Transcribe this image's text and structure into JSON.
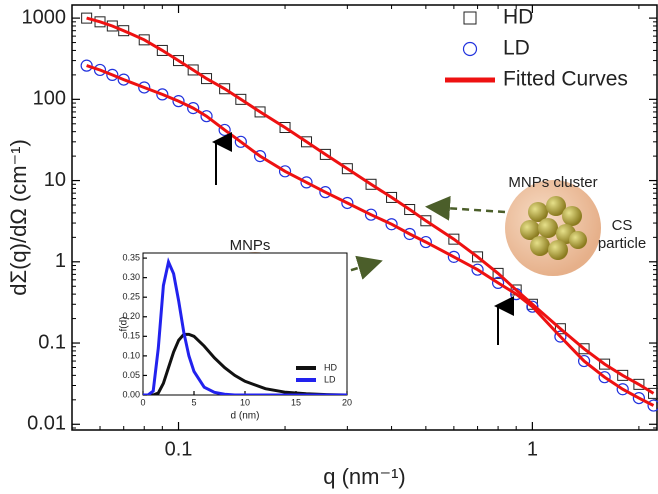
{
  "chart_data": [
    {
      "type": "scatter",
      "xlabel": "q (nm⁻¹)",
      "ylabel": "dΣ(q)/dΩ (cm⁻¹)",
      "xlog": true,
      "ylog": true,
      "xlim": [
        0.05,
        2.25
      ],
      "ylim": [
        0.0085,
        1450
      ],
      "xticks": [
        0.1,
        1
      ],
      "yticks": [
        0.01,
        0.1,
        1,
        10,
        100,
        1000
      ],
      "x": [
        0.055,
        0.06,
        0.065,
        0.07,
        0.08,
        0.09,
        0.1,
        0.11,
        0.12,
        0.135,
        0.15,
        0.17,
        0.2,
        0.23,
        0.26,
        0.3,
        0.35,
        0.4,
        0.45,
        0.5,
        0.6,
        0.7,
        0.8,
        0.9,
        1.0,
        1.2,
        1.4,
        1.6,
        1.8,
        2.0,
        2.2
      ],
      "series": [
        {
          "name": "HD",
          "marker": "square",
          "color": "#222222",
          "values": [
            1000,
            900,
            800,
            700,
            540,
            400,
            300,
            230,
            180,
            135,
            100,
            70,
            45,
            30,
            21,
            14,
            9,
            6.2,
            4.4,
            3.2,
            1.9,
            1.15,
            0.72,
            0.45,
            0.3,
            0.15,
            0.085,
            0.055,
            0.04,
            0.031,
            0.024
          ]
        },
        {
          "name": "LD",
          "marker": "circle",
          "color": "#2233dd",
          "values": [
            260,
            230,
            200,
            175,
            140,
            115,
            95,
            78,
            62,
            42,
            30,
            20,
            13,
            9.5,
            7.2,
            5.3,
            3.8,
            2.9,
            2.2,
            1.75,
            1.15,
            0.8,
            0.55,
            0.4,
            0.28,
            0.12,
            0.06,
            0.038,
            0.027,
            0.021,
            0.017
          ]
        },
        {
          "name": "Fitted Curves",
          "marker": "line",
          "color": "#ee1111",
          "values": [
            1000,
            900,
            800,
            700,
            540,
            400,
            300,
            230,
            180,
            135,
            100,
            70,
            45,
            30,
            21,
            14,
            9,
            6.2,
            4.4,
            3.2,
            1.9,
            1.15,
            0.72,
            0.45,
            0.3,
            0.15,
            0.085,
            0.055,
            0.04,
            0.031,
            0.024
          ]
        },
        {
          "marker": "line",
          "color": "#ee1111",
          "values": [
            260,
            230,
            200,
            175,
            140,
            115,
            95,
            78,
            62,
            42,
            30,
            20,
            13,
            9.5,
            7.2,
            5.3,
            3.8,
            2.9,
            2.2,
            1.75,
            1.15,
            0.8,
            0.55,
            0.4,
            0.28,
            0.12,
            0.06,
            0.038,
            0.027,
            0.021,
            0.017
          ]
        }
      ],
      "annotations": [
        "MNPs cluster",
        "CS",
        "particle",
        "MNPs",
        "CS",
        "particle"
      ]
    },
    {
      "type": "line",
      "xlabel": "d (nm)",
      "ylabel": "f(d)",
      "xlim": [
        0,
        20
      ],
      "ylim": [
        0,
        0.363
      ],
      "xticks": [
        0,
        5,
        10,
        15,
        20
      ],
      "yticks": [
        {
          "value": 0,
          "label": "0.00"
        },
        0.05,
        {
          "value": 0.1,
          "label": "0.10"
        },
        0.15,
        {
          "value": 0.2,
          "label": "0.20"
        },
        0.25,
        {
          "value": 0.3,
          "label": "0.30"
        },
        0.35
      ],
      "x": [
        0,
        0.5,
        1,
        1.5,
        2,
        2.5,
        3,
        3.5,
        4,
        4.5,
        5,
        6,
        7,
        8,
        9,
        10,
        12,
        14,
        16,
        18,
        20
      ],
      "series": [
        {
          "name": "HD",
          "color": "#111111",
          "values": [
            0,
            0,
            0,
            0.005,
            0.03,
            0.07,
            0.11,
            0.14,
            0.155,
            0.155,
            0.15,
            0.125,
            0.095,
            0.07,
            0.05,
            0.035,
            0.016,
            0.007,
            0.003,
            0.001,
            0
          ]
        },
        {
          "name": "LD",
          "color": "#2222ee",
          "values": [
            0,
            0,
            0.01,
            0.12,
            0.28,
            0.34,
            0.31,
            0.24,
            0.16,
            0.1,
            0.06,
            0.02,
            0.007,
            0.002,
            0,
            0,
            0,
            0,
            0,
            0,
            0
          ]
        }
      ]
    }
  ]
}
